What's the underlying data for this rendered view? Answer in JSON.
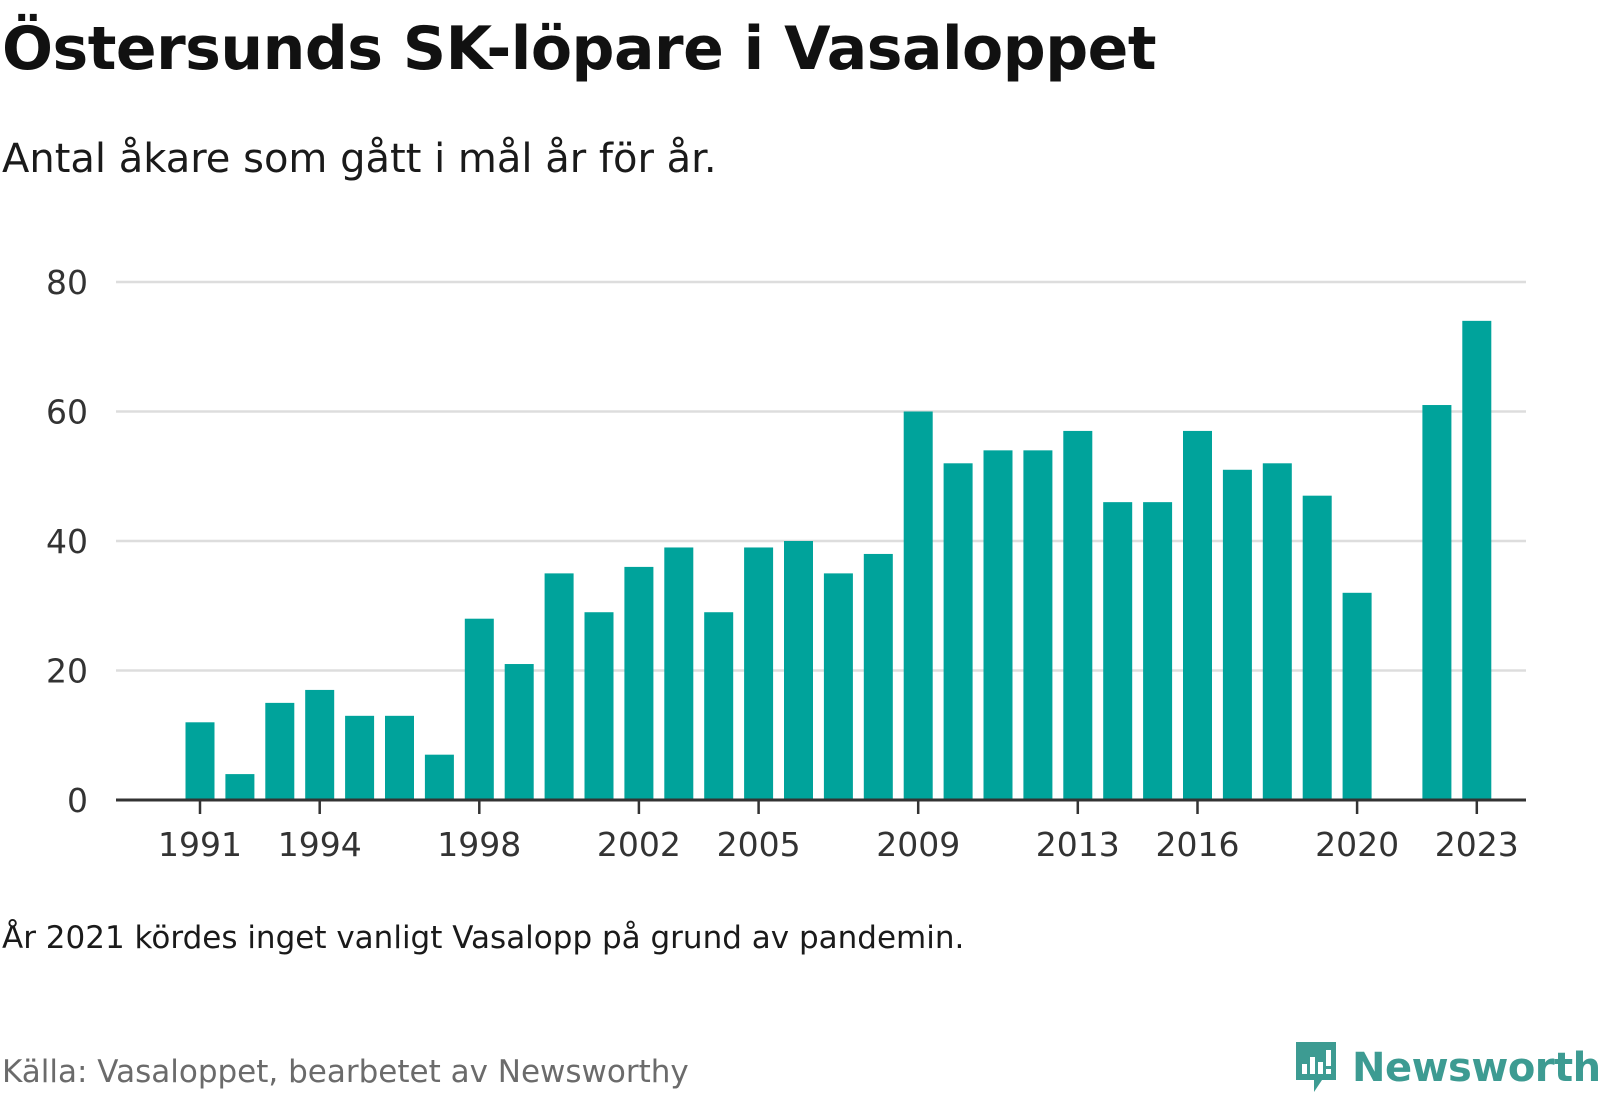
{
  "title": "Östersunds SK-löpare i Vasaloppet",
  "subtitle": "Antal åkare som gått i mål år för år.",
  "note": "År 2021 kördes inget vanligt Vasalopp på grund av pandemin.",
  "source": "Källa: Vasaloppet, bearbetet av Newsworthy",
  "logo": {
    "text": "Newsworthy",
    "icon": "newsworthy-logo-icon",
    "color": "#3d9b92"
  },
  "colors": {
    "bar": "#00a39b",
    "grid": "#dddddd",
    "axis": "#333333",
    "tick_text": "#333333"
  },
  "chart_data": {
    "type": "bar",
    "title": "Östersunds SK-löpare i Vasaloppet",
    "subtitle": "Antal åkare som gått i mål år för år.",
    "xlabel": "",
    "ylabel": "",
    "ylim": [
      0,
      80
    ],
    "yticks": [
      0,
      20,
      40,
      60,
      80
    ],
    "grid": true,
    "categories": [
      1991,
      1992,
      1993,
      1994,
      1995,
      1996,
      1997,
      1998,
      1999,
      2000,
      2001,
      2002,
      2003,
      2004,
      2005,
      2006,
      2007,
      2008,
      2009,
      2010,
      2011,
      2012,
      2013,
      2014,
      2015,
      2016,
      2017,
      2018,
      2019,
      2020,
      2021,
      2022,
      2023
    ],
    "values": [
      12,
      4,
      15,
      17,
      13,
      13,
      7,
      28,
      21,
      35,
      29,
      36,
      39,
      29,
      39,
      40,
      35,
      38,
      60,
      52,
      54,
      54,
      57,
      46,
      46,
      57,
      51,
      52,
      47,
      32,
      null,
      61,
      74
    ],
    "xtick_labels": [
      "1991",
      "1994",
      "1998",
      "2002",
      "2005",
      "2009",
      "2013",
      "2016",
      "2020",
      "2023"
    ]
  }
}
